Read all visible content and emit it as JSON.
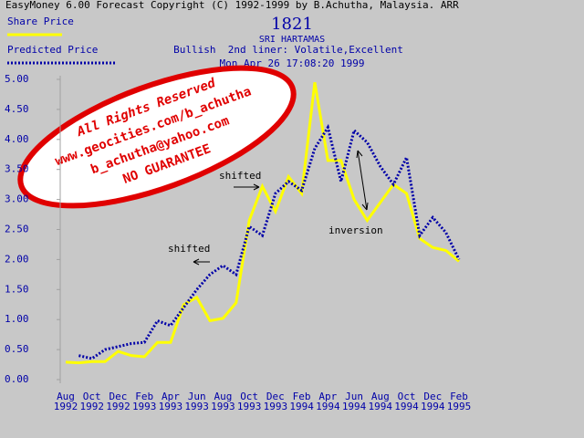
{
  "window_title": "EasyMoney 6.00 Forecast Copyright (C) 1992-1999 by B.Achutha, Malaysia. ARR",
  "chart_data": {
    "type": "line",
    "code": "1821",
    "title": "SRI HARTAMAS",
    "subtitle": "Bullish  2nd liner: Volatile,Excellent",
    "timestamp": "Mon Apr 26 17:08:20 1999",
    "categories": [
      "Aug 1992",
      null,
      "Oct 1992",
      null,
      "Dec 1992",
      null,
      "Feb 1993",
      null,
      "Apr 1993",
      null,
      "Jun 1993",
      null,
      "Aug 1993",
      null,
      "Oct 1993",
      null,
      "Dec 1993",
      null,
      "Feb 1994",
      null,
      "Apr 1994",
      null,
      "Jun 1994",
      null,
      "Aug 1994",
      null,
      "Oct 1994",
      null,
      "Dec 1994",
      null,
      "Feb 1995"
    ],
    "series": [
      {
        "name": "Share Price",
        "color": "#ffff00",
        "style": "solid",
        "values": [
          0.29,
          0.28,
          0.3,
          0.3,
          0.47,
          0.4,
          0.38,
          0.62,
          0.62,
          1.25,
          1.37,
          0.98,
          1.02,
          1.28,
          2.65,
          3.22,
          2.8,
          3.38,
          3.1,
          4.95,
          3.65,
          3.65,
          3.0,
          2.65,
          2.95,
          3.25,
          3.1,
          2.35,
          2.2,
          2.15,
          1.97
        ]
      },
      {
        "name": "Predicted Price",
        "color": "#0000a8",
        "style": "dotted",
        "values": [
          null,
          0.4,
          0.35,
          0.5,
          0.55,
          0.6,
          0.62,
          0.98,
          0.9,
          1.2,
          1.5,
          1.75,
          1.9,
          1.75,
          2.55,
          2.4,
          3.1,
          3.3,
          3.15,
          3.85,
          4.2,
          3.3,
          4.15,
          3.95,
          3.55,
          3.25,
          3.7,
          2.4,
          2.7,
          2.45,
          2.0
        ]
      }
    ],
    "ylim": [
      0,
      5
    ],
    "yticks": [
      {
        "value": 0,
        "label": "0.00"
      },
      {
        "value": 0.5,
        "label": "0.50"
      },
      {
        "value": 1,
        "label": "1.00"
      },
      {
        "value": 1.5,
        "label": "1.50"
      },
      {
        "value": 2,
        "label": "2.00"
      },
      {
        "value": 2.5,
        "label": "2.50"
      },
      {
        "value": 3,
        "label": "3.00"
      },
      {
        "value": 3.5,
        "label": "3.50"
      },
      {
        "value": 4,
        "label": "4.00"
      },
      {
        "value": 4.5,
        "label": "4.50"
      },
      {
        "value": 5,
        "label": "5.00"
      }
    ],
    "annotations": [
      "shifted",
      "shifted",
      "inversion"
    ],
    "watermark": [
      "All Rights Reserved",
      "www.geocities.com/b_achutha",
      "b_achutha@yahoo.com",
      "NO GUARANTEE"
    ]
  }
}
